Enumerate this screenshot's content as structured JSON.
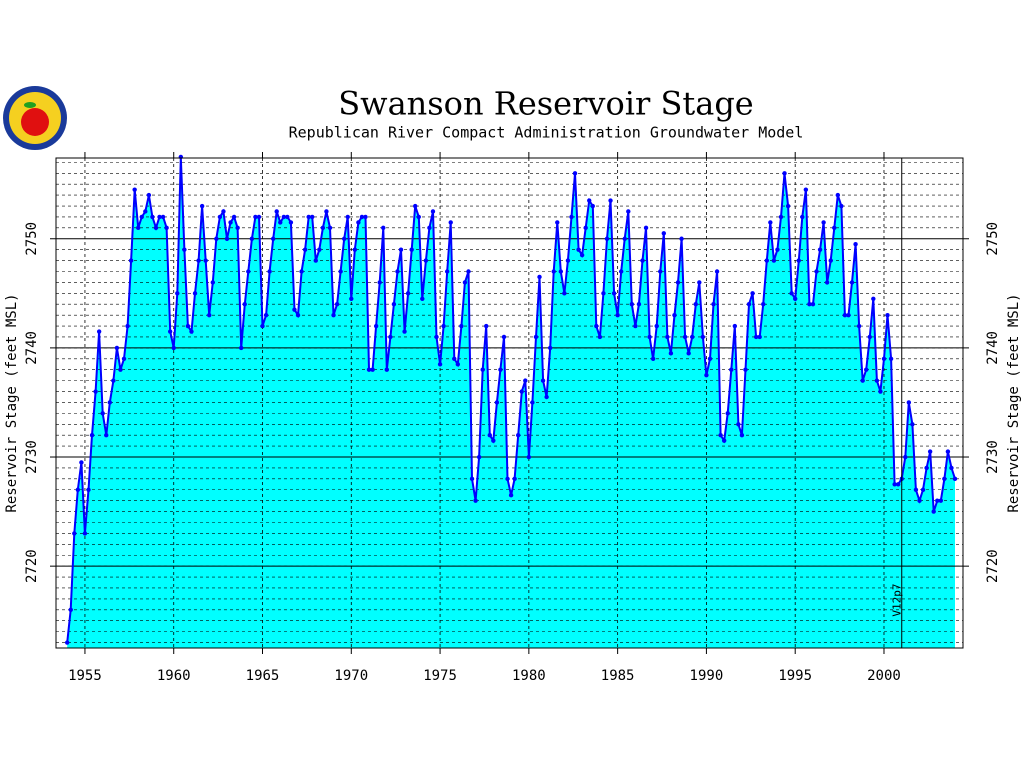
{
  "chart_data": {
    "type": "area",
    "title": "Swanson Reservoir Stage",
    "subtitle": "Republican River Compact Administration Groundwater Model",
    "y_label": "Reservoir Stage (feet MSL)",
    "y2_label": "Reservoir Stage (feet MSL)",
    "annotation": {
      "x": 2001.0,
      "text": "V12p7"
    },
    "xlim": [
      1953.37,
      2004.45
    ],
    "ylim": [
      2712.5,
      2757.4
    ],
    "xticks": [
      1955,
      1960,
      1965,
      1970,
      1975,
      1980,
      1985,
      1990,
      1995,
      2000
    ],
    "yticks": [
      2720,
      2730,
      2740,
      2750
    ],
    "grid": true,
    "fill_color": "#00ffff",
    "line_color": "#0000ff",
    "x": [
      1954.0,
      1954.2,
      1954.4,
      1954.6,
      1954.8,
      1955.0,
      1955.2,
      1955.4,
      1955.6,
      1955.8,
      1956.0,
      1956.2,
      1956.4,
      1956.6,
      1956.8,
      1957.0,
      1957.2,
      1957.4,
      1957.6,
      1957.8,
      1958.0,
      1958.2,
      1958.4,
      1958.6,
      1958.8,
      1959.0,
      1959.2,
      1959.4,
      1959.6,
      1959.8,
      1960.0,
      1960.2,
      1960.4,
      1960.6,
      1960.8,
      1961.0,
      1961.2,
      1961.4,
      1961.6,
      1961.8,
      1962.0,
      1962.2,
      1962.4,
      1962.6,
      1962.8,
      1963.0,
      1963.2,
      1963.4,
      1963.6,
      1963.8,
      1964.0,
      1964.2,
      1964.4,
      1964.6,
      1964.8,
      1965.0,
      1965.2,
      1965.4,
      1965.6,
      1965.8,
      1966.0,
      1966.2,
      1966.4,
      1966.6,
      1966.8,
      1967.0,
      1967.2,
      1967.4,
      1967.6,
      1967.8,
      1968.0,
      1968.2,
      1968.4,
      1968.6,
      1968.8,
      1969.0,
      1969.2,
      1969.4,
      1969.6,
      1969.8,
      1970.0,
      1970.2,
      1970.4,
      1970.6,
      1970.8,
      1971.0,
      1971.2,
      1971.4,
      1971.6,
      1971.8,
      1972.0,
      1972.2,
      1972.4,
      1972.6,
      1972.8,
      1973.0,
      1973.2,
      1973.4,
      1973.6,
      1973.8,
      1974.0,
      1974.2,
      1974.4,
      1974.6,
      1974.8,
      1975.0,
      1975.2,
      1975.4,
      1975.6,
      1975.8,
      1976.0,
      1976.2,
      1976.4,
      1976.6,
      1976.8,
      1977.0,
      1977.2,
      1977.4,
      1977.6,
      1977.8,
      1978.0,
      1978.2,
      1978.4,
      1978.6,
      1978.8,
      1979.0,
      1979.2,
      1979.4,
      1979.6,
      1979.8,
      1980.0,
      1980.2,
      1980.4,
      1980.6,
      1980.8,
      1981.0,
      1981.2,
      1981.4,
      1981.6,
      1981.8,
      1982.0,
      1982.2,
      1982.4,
      1982.6,
      1982.8,
      1983.0,
      1983.2,
      1983.4,
      1983.6,
      1983.8,
      1984.0,
      1984.2,
      1984.4,
      1984.6,
      1984.8,
      1985.0,
      1985.2,
      1985.4,
      1985.6,
      1985.8,
      1986.0,
      1986.2,
      1986.4,
      1986.6,
      1986.8,
      1987.0,
      1987.2,
      1987.4,
      1987.6,
      1987.8,
      1988.0,
      1988.2,
      1988.4,
      1988.6,
      1988.8,
      1989.0,
      1989.2,
      1989.4,
      1989.6,
      1989.8,
      1990.0,
      1990.2,
      1990.4,
      1990.6,
      1990.8,
      1991.0,
      1991.2,
      1991.4,
      1991.6,
      1991.8,
      1992.0,
      1992.2,
      1992.4,
      1992.6,
      1992.8,
      1993.0,
      1993.2,
      1993.4,
      1993.6,
      1993.8,
      1994.0,
      1994.2,
      1994.4,
      1994.6,
      1994.8,
      1995.0,
      1995.2,
      1995.4,
      1995.6,
      1995.8,
      1996.0,
      1996.2,
      1996.4,
      1996.6,
      1996.8,
      1997.0,
      1997.2,
      1997.4,
      1997.6,
      1997.8,
      1998.0,
      1998.2,
      1998.4,
      1998.6,
      1998.8,
      1999.0,
      1999.2,
      1999.4,
      1999.6,
      1999.8,
      2000.0,
      2000.2,
      2000.4,
      2000.6,
      2000.8,
      2001.0,
      2001.2,
      2001.4,
      2001.6,
      2001.8,
      2002.0,
      2002.2,
      2002.4,
      2002.6,
      2002.8,
      2003.0,
      2003.2,
      2003.4,
      2003.6,
      2003.8,
      2004.0
    ],
    "values": [
      2713,
      2716,
      2723,
      2727,
      2729.5,
      2723,
      2727,
      2732,
      2736,
      2741.5,
      2734,
      2732,
      2735,
      2737,
      2740,
      2738,
      2739,
      2742,
      2748,
      2754.5,
      2751,
      2752,
      2752.5,
      2754,
      2752,
      2751,
      2752,
      2752,
      2751,
      2741.5,
      2740,
      2745,
      2757.5,
      2749,
      2742,
      2741.5,
      2745,
      2748,
      2753,
      2748,
      2743,
      2746,
      2750,
      2752,
      2752.5,
      2750,
      2751.5,
      2752,
      2751,
      2740,
      2744,
      2747,
      2750,
      2752,
      2752,
      2742,
      2743,
      2747,
      2750,
      2752.5,
      2751.5,
      2752,
      2752,
      2751.5,
      2743.5,
      2743,
      2747,
      2749,
      2752,
      2752,
      2748,
      2749,
      2751,
      2752.5,
      2751,
      2743,
      2744,
      2747,
      2750,
      2752,
      2744.5,
      2749,
      2751.5,
      2752,
      2752,
      2738,
      2738,
      2742,
      2746,
      2751,
      2738,
      2741,
      2744,
      2747,
      2749,
      2741.5,
      2745,
      2749,
      2753,
      2752,
      2744.5,
      2748,
      2751,
      2752.5,
      2741,
      2738.5,
      2742,
      2747,
      2751.5,
      2739,
      2738.5,
      2742,
      2746,
      2747,
      2728,
      2726,
      2730,
      2738,
      2742,
      2732,
      2731.5,
      2735,
      2738,
      2741,
      2728,
      2726.5,
      2728,
      2732,
      2736,
      2737,
      2730,
      2735,
      2741,
      2746.5,
      2737,
      2735.5,
      2740,
      2747,
      2751.5,
      2747,
      2745,
      2748,
      2752,
      2756,
      2749,
      2748.5,
      2751,
      2753.5,
      2753,
      2742,
      2741,
      2745,
      2750,
      2753.5,
      2745,
      2743,
      2747,
      2750,
      2752.5,
      2744,
      2742,
      2744,
      2748,
      2751,
      2741,
      2739,
      2742,
      2747,
      2750.5,
      2741,
      2739.5,
      2743,
      2746,
      2750,
      2741,
      2739.5,
      2741,
      2744,
      2746,
      2741,
      2737.5,
      2739,
      2744,
      2747,
      2732,
      2731.5,
      2734,
      2738,
      2742,
      2733,
      2732,
      2738,
      2744,
      2745,
      2741,
      2741,
      2744,
      2748,
      2751.5,
      2748,
      2749,
      2752,
      2756,
      2753,
      2745,
      2744.5,
      2748,
      2752,
      2754.5,
      2744,
      2744,
      2747,
      2749,
      2751.5,
      2746,
      2748,
      2751,
      2754,
      2753,
      2743,
      2743,
      2746,
      2749.5,
      2742,
      2737,
      2738,
      2741,
      2744.5,
      2737,
      2736,
      2739,
      2743,
      2739,
      2727.5,
      2727.5,
      2728,
      2730,
      2735,
      2733,
      2727,
      2726,
      2727,
      2729,
      2730.5,
      2725,
      2726,
      2726,
      2728,
      2730.5,
      2729,
      2728
    ]
  }
}
